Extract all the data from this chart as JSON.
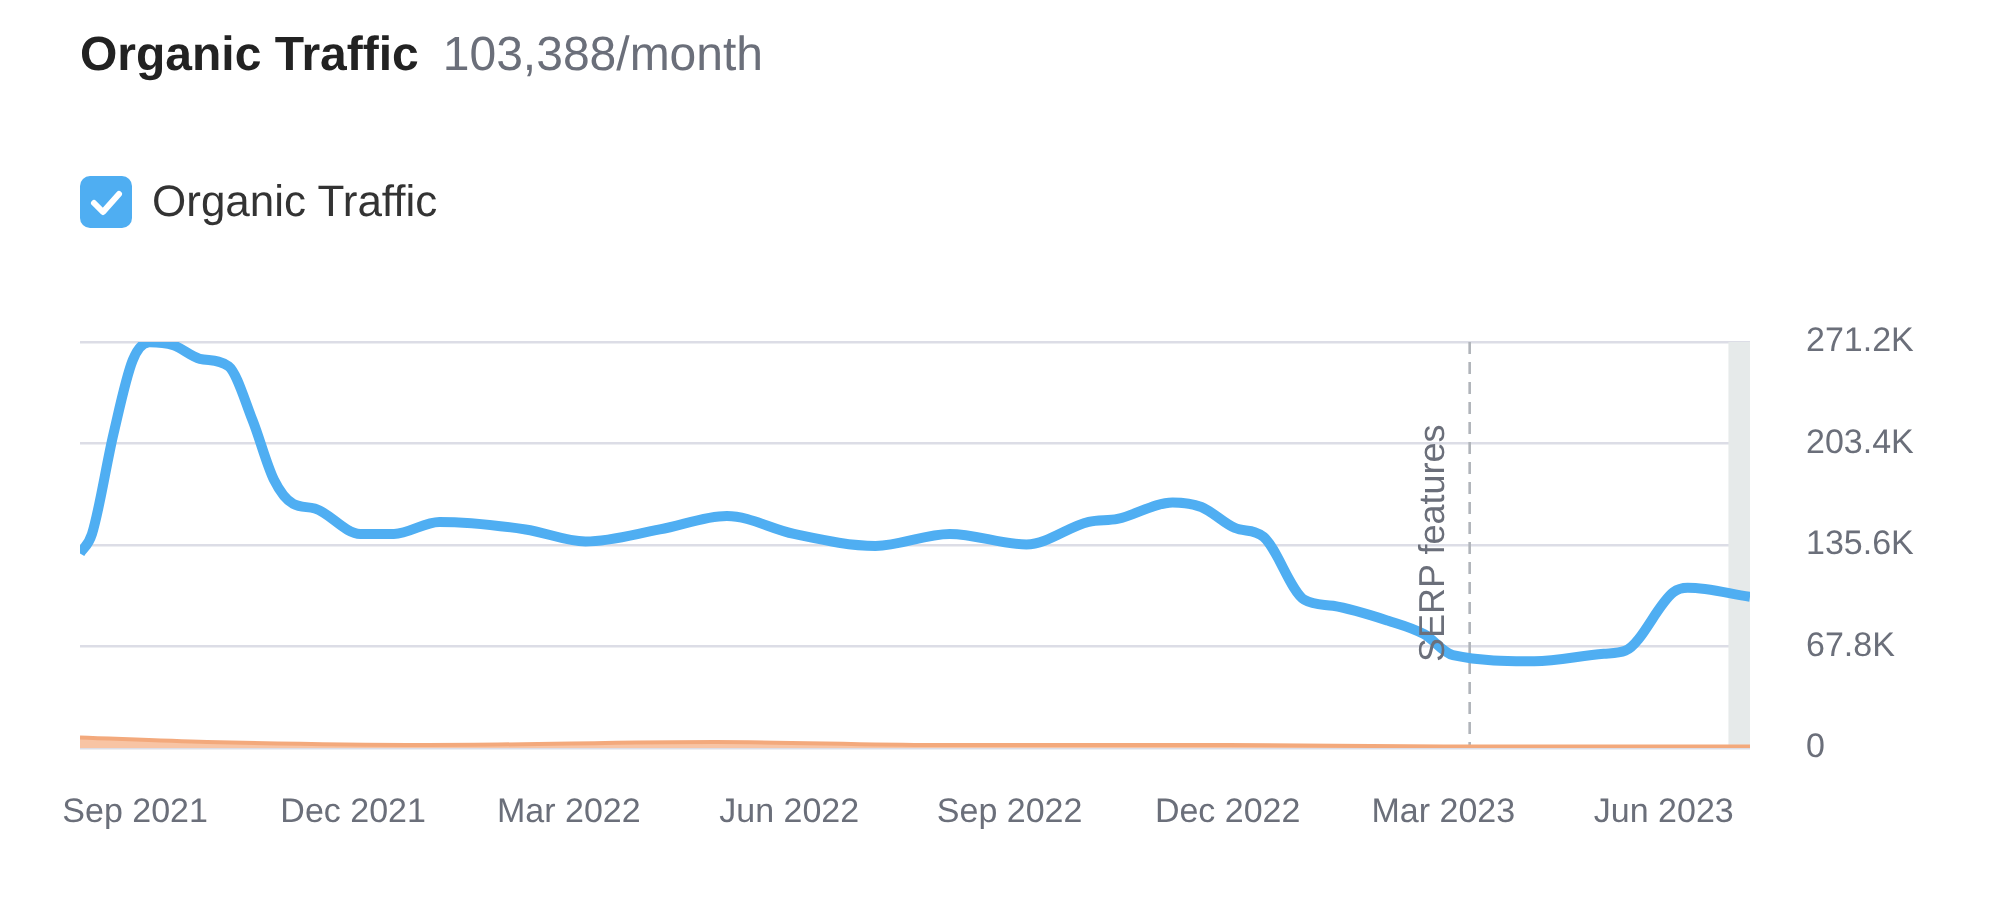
{
  "chart_data": {
    "type": "line",
    "title": "Organic Traffic",
    "subtitle": "103,388/month",
    "legend": "top left",
    "grid": "y",
    "marker": "none",
    "xlim": [
      "2021-08-09",
      "2023-07-07"
    ],
    "xticks": [
      {
        "value": "2021-09-01",
        "label": "Sep 2021"
      },
      {
        "value": "2021-12-01",
        "label": "Dec 2021"
      },
      {
        "value": "2022-03-01",
        "label": "Mar 2022"
      },
      {
        "value": "2022-06-01",
        "label": "Jun 2022"
      },
      {
        "value": "2022-09-01",
        "label": "Sep 2022"
      },
      {
        "value": "2022-12-01",
        "label": "Dec 2022"
      },
      {
        "value": "2023-03-01",
        "label": "Mar 2023"
      },
      {
        "value": "2023-06-01",
        "label": "Jun 2023"
      }
    ],
    "ylim": [
      0,
      271200
    ],
    "yticks": [
      0,
      {
        "value": 67800,
        "label": "67.8K"
      },
      {
        "value": 135600,
        "label": "135.6K"
      },
      {
        "value": 203400,
        "label": "203.4K"
      },
      {
        "value": 271200,
        "label": "271.2K"
      }
    ],
    "ref_lines": [
      {
        "axis": "x",
        "value": "2023-03-12",
        "label": "SERP features",
        "color": "#b0b4ba",
        "line_style": "dashed"
      }
    ],
    "bands": [
      {
        "axis": "x",
        "from": "2023-06-28",
        "to": "2023-07-07",
        "color": "#e6eaea"
      }
    ],
    "series": [
      {
        "name": "Organic Traffic",
        "color": "#4faef2",
        "x": [
          "2021-08-09",
          "2021-08-14",
          "2021-08-23",
          "2021-08-31",
          "2021-09-07",
          "2021-09-17",
          "2021-09-28",
          "2021-10-10",
          "2021-10-20",
          "2021-10-29",
          "2021-11-06",
          "2021-11-15",
          "2021-12-04",
          "2021-12-18",
          "2022-01-06",
          "2022-02-11",
          "2022-03-08",
          "2022-04-08",
          "2022-05-06",
          "2022-06-03",
          "2022-07-07",
          "2022-08-07",
          "2022-09-08",
          "2022-10-04",
          "2022-10-16",
          "2022-11-08",
          "2022-11-20",
          "2022-12-04",
          "2022-12-16",
          "2023-01-02",
          "2023-01-14",
          "2023-02-06",
          "2023-02-21",
          "2023-03-05",
          "2023-04-08",
          "2023-05-07",
          "2023-05-16",
          "2023-06-05",
          "2023-06-11",
          "2023-07-07"
        ],
        "values": [
          130000,
          143000,
          210000,
          259000,
          271000,
          269000,
          260000,
          255000,
          219000,
          179000,
          163000,
          160000,
          143000,
          143000,
          151000,
          146000,
          138000,
          146000,
          155000,
          143000,
          135000,
          143000,
          136000,
          151000,
          153000,
          164000,
          161000,
          147000,
          141000,
          99000,
          95000,
          85000,
          76000,
          62000,
          58000,
          63000,
          65000,
          104000,
          107000,
          101000
        ]
      },
      {
        "type": "area",
        "color": "#f8c4a4",
        "x": [
          "2021-08-09",
          "2021-10-01",
          "2022-01-01",
          "2022-05-01",
          "2022-08-01",
          "2022-12-01",
          "2023-03-01",
          "2023-07-07"
        ],
        "values": [
          7000,
          4000,
          2000,
          4000,
          2000,
          2000,
          1000,
          1000
        ]
      }
    ]
  }
}
